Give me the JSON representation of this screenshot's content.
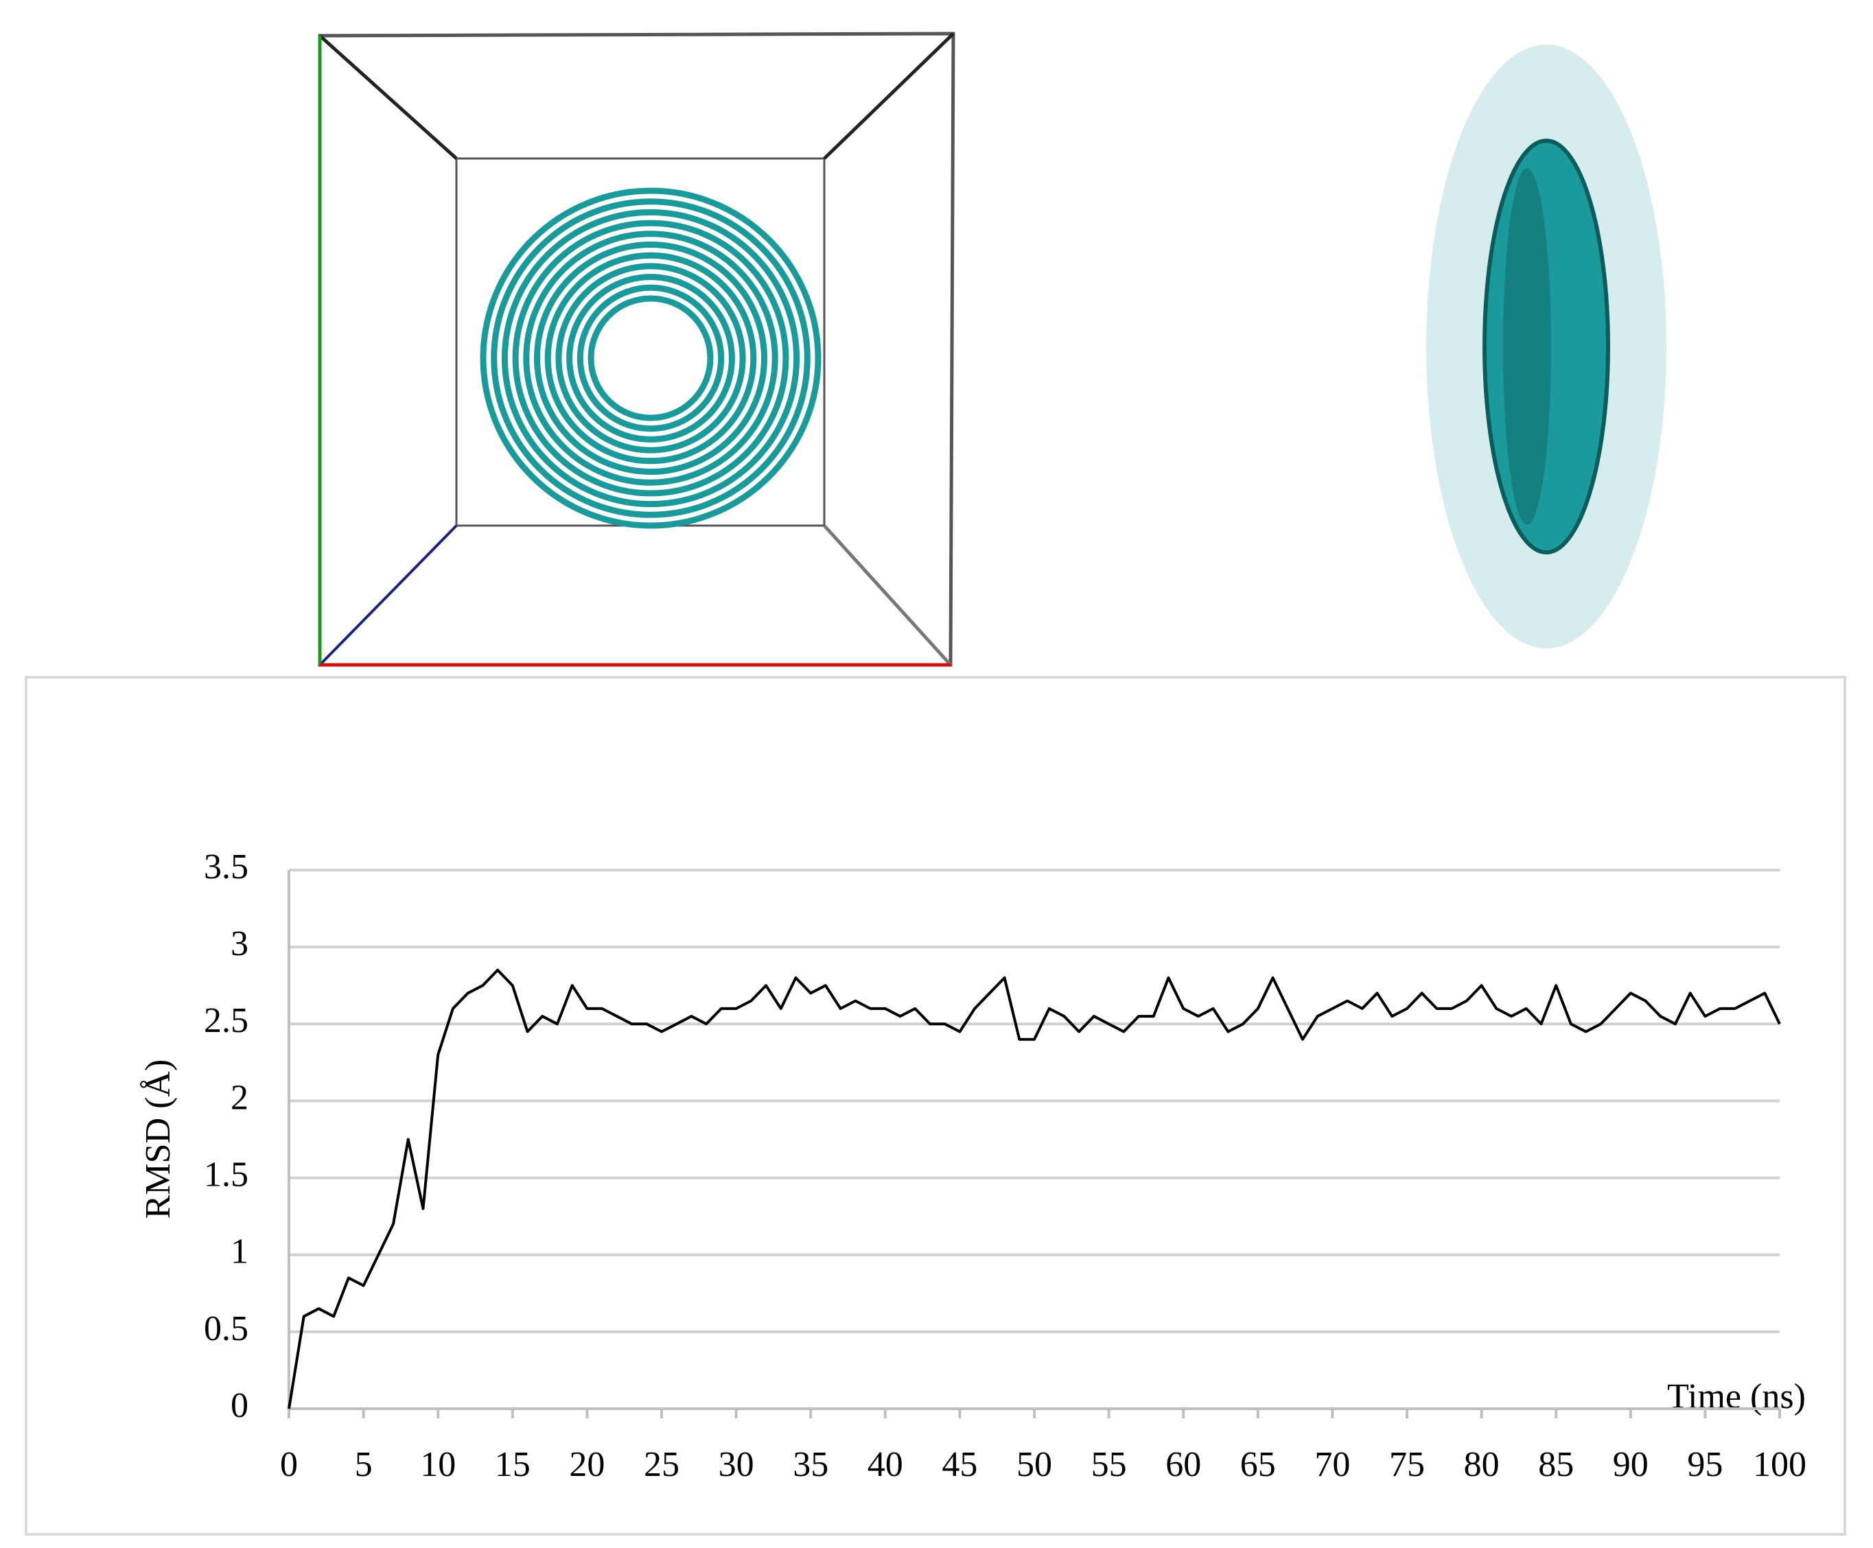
{
  "chart_data": {
    "type": "line",
    "x_label": "Time (ns)",
    "y_label": "RMSD (Å)",
    "x": [
      0,
      1,
      2,
      3,
      4,
      5,
      6,
      7,
      8,
      9,
      10,
      11,
      12,
      13,
      14,
      15,
      16,
      17,
      18,
      19,
      20,
      21,
      22,
      23,
      24,
      25,
      26,
      27,
      28,
      29,
      30,
      31,
      32,
      33,
      34,
      35,
      36,
      37,
      38,
      39,
      40,
      41,
      42,
      43,
      44,
      45,
      46,
      47,
      48,
      49,
      50,
      51,
      52,
      53,
      54,
      55,
      56,
      57,
      58,
      59,
      60,
      61,
      62,
      63,
      64,
      65,
      66,
      67,
      68,
      69,
      70,
      71,
      72,
      73,
      74,
      75,
      76,
      77,
      78,
      79,
      80,
      81,
      82,
      83,
      84,
      85,
      86,
      87,
      88,
      89,
      90,
      91,
      92,
      93,
      94,
      95,
      96,
      97,
      98,
      99,
      100
    ],
    "values": [
      0,
      0.6,
      0.65,
      0.6,
      0.85,
      0.8,
      1.0,
      1.2,
      1.75,
      1.3,
      2.3,
      2.6,
      2.7,
      2.75,
      2.85,
      2.75,
      2.45,
      2.55,
      2.5,
      2.75,
      2.6,
      2.6,
      2.55,
      2.5,
      2.5,
      2.45,
      2.5,
      2.55,
      2.5,
      2.6,
      2.6,
      2.65,
      2.75,
      2.6,
      2.8,
      2.7,
      2.75,
      2.6,
      2.65,
      2.6,
      2.6,
      2.55,
      2.6,
      2.5,
      2.5,
      2.45,
      2.6,
      2.7,
      2.8,
      2.4,
      2.4,
      2.6,
      2.55,
      2.45,
      2.55,
      2.5,
      2.45,
      2.55,
      2.55,
      2.8,
      2.6,
      2.55,
      2.6,
      2.45,
      2.5,
      2.6,
      2.8,
      2.6,
      2.4,
      2.55,
      2.6,
      2.65,
      2.6,
      2.7,
      2.55,
      2.6,
      2.7,
      2.6,
      2.6,
      2.65,
      2.75,
      2.6,
      2.55,
      2.6,
      2.5,
      2.75,
      2.5,
      2.45,
      2.5,
      2.6,
      2.7,
      2.65,
      2.55,
      2.5,
      2.7,
      2.55,
      2.6,
      2.6,
      2.65,
      2.7,
      2.5
    ],
    "color": "#000000",
    "xlim": [
      0,
      100
    ],
    "xticks": [
      0,
      5,
      10,
      15,
      20,
      25,
      30,
      35,
      40,
      45,
      50,
      55,
      60,
      65,
      70,
      75,
      80,
      85,
      90,
      95,
      100
    ],
    "ylim": [
      0,
      3.5
    ],
    "yticks": [
      0,
      0.5,
      1,
      1.5,
      2,
      2.5,
      3,
      3.5
    ],
    "grid": true
  }
}
